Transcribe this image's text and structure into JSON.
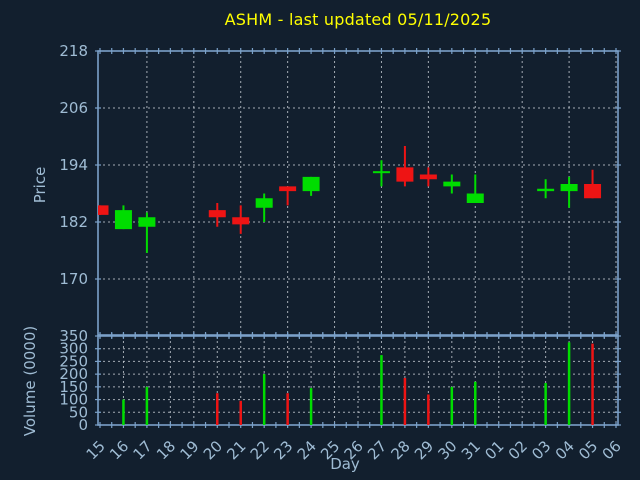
{
  "title": "ASHM - last updated 05/11/2025",
  "chart_data": {
    "type": "candlestick",
    "title": "ASHM - last updated 05/11/2025",
    "xlabel": "Day",
    "price_axis": {
      "label": "Price",
      "ticks": [
        218,
        206,
        194,
        182,
        170
      ],
      "range": [
        158,
        218.7
      ]
    },
    "volume_axis": {
      "label": "Volume (0000)",
      "ticks": [
        0,
        50,
        100,
        150,
        200,
        250,
        300,
        350
      ],
      "range": [
        0,
        350
      ]
    },
    "categories": [
      "15",
      "16",
      "17",
      "18",
      "19",
      "20",
      "21",
      "22",
      "23",
      "24",
      "25",
      "26",
      "27",
      "28",
      "29",
      "30",
      "31",
      "01",
      "02",
      "03",
      "04",
      "05",
      "06"
    ],
    "grid": true,
    "candles": [
      {
        "day": "15",
        "open": 185.5,
        "high": 185.5,
        "low": 183.5,
        "close": 183.5,
        "volume": 0
      },
      {
        "day": "16",
        "open": 180.5,
        "high": 185.5,
        "low": 180.5,
        "close": 184.5,
        "volume": 100
      },
      {
        "day": "17",
        "open": 181,
        "high": 184,
        "low": 175.5,
        "close": 183,
        "volume": 150
      },
      {
        "day": "20",
        "open": 184.5,
        "high": 186,
        "low": 181,
        "close": 183,
        "volume": 125
      },
      {
        "day": "21",
        "open": 183,
        "high": 185.5,
        "low": 179.5,
        "close": 181.5,
        "volume": 95
      },
      {
        "day": "22",
        "open": 185,
        "high": 188,
        "low": 182,
        "close": 187,
        "volume": 200
      },
      {
        "day": "23",
        "open": 189.5,
        "high": 189.5,
        "low": 185.5,
        "close": 188.5,
        "volume": 125
      },
      {
        "day": "24",
        "open": 188.5,
        "high": 191.5,
        "low": 187.5,
        "close": 191.5,
        "volume": 145
      },
      {
        "day": "27",
        "open": 192.3,
        "high": 195,
        "low": 189.5,
        "close": 192.7,
        "volume": 275
      },
      {
        "day": "28",
        "open": 193.5,
        "high": 198,
        "low": 189.5,
        "close": 190.5,
        "volume": 185
      },
      {
        "day": "29",
        "open": 192,
        "high": 193.5,
        "low": 189.5,
        "close": 191,
        "volume": 120
      },
      {
        "day": "30",
        "open": 189.5,
        "high": 192,
        "low": 188,
        "close": 190.5,
        "volume": 150
      },
      {
        "day": "31",
        "open": 186,
        "high": 192,
        "low": 186,
        "close": 188,
        "volume": 170
      },
      {
        "day": "03",
        "open": 188.5,
        "high": 191,
        "low": 187,
        "close": 189,
        "volume": 165
      },
      {
        "day": "04",
        "open": 188.5,
        "high": 191.5,
        "low": 185,
        "close": 190,
        "volume": 325
      },
      {
        "day": "05",
        "open": 190,
        "high": 193,
        "low": 187,
        "close": 187,
        "volume": 320
      }
    ],
    "colors": {
      "up": "#00dd00",
      "down": "#ee1414",
      "background": "#121f2e",
      "frame": "#7ba1c9",
      "grid": "#c9cfd6",
      "tick_label": "#9fbcd4",
      "title": "#ffff00"
    }
  }
}
